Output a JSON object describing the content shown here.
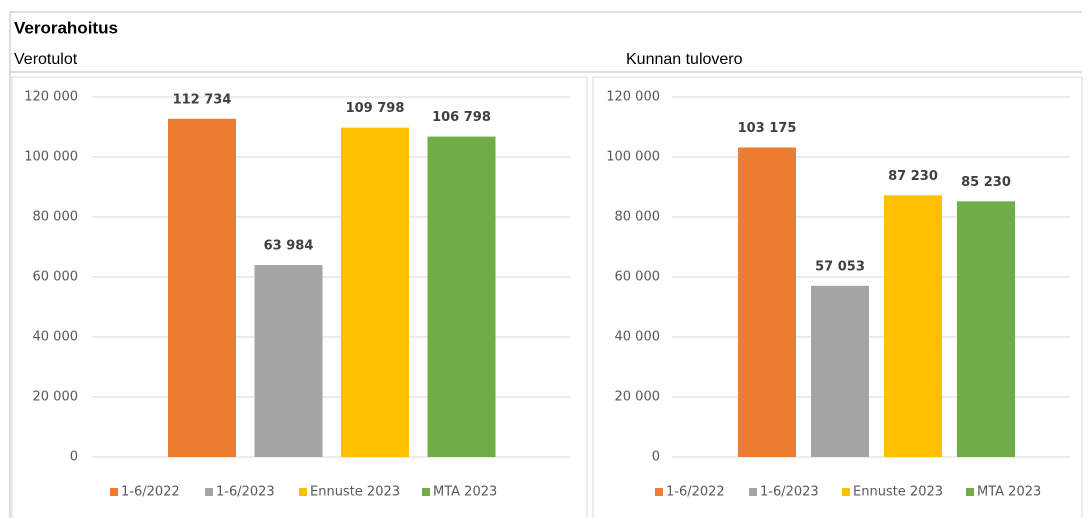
{
  "title": "Verorahoitus",
  "chart_data": [
    {
      "type": "bar",
      "title": "Verotulot",
      "categories": [
        null
      ],
      "series": [
        {
          "name": "1-6/2022",
          "color": "#ED7D31",
          "values": [
            112734
          ],
          "value_labels": [
            "112 734"
          ]
        },
        {
          "name": "1-6/2023",
          "color": "#A5A5A5",
          "values": [
            63984
          ],
          "value_labels": [
            "63 984"
          ]
        },
        {
          "name": "Ennuste 2023",
          "color": "#FFC000",
          "values": [
            109798
          ],
          "value_labels": [
            "109 798"
          ]
        },
        {
          "name": "MTA 2023",
          "color": "#70AD47",
          "values": [
            106798
          ],
          "value_labels": [
            "106 798"
          ]
        }
      ],
      "ylim": [
        0,
        120000
      ],
      "yticks": [
        0,
        {
          "value": 20000,
          "label": "20 000"
        },
        {
          "value": 40000,
          "label": "40 000"
        },
        {
          "value": 60000,
          "label": "60 000"
        },
        {
          "value": 80000,
          "label": "80 000"
        },
        {
          "value": 100000,
          "label": "100 000"
        },
        {
          "value": 120000,
          "label": "120 000"
        }
      ],
      "grid": true,
      "legend": "bottom"
    },
    {
      "type": "bar",
      "title": "Kunnan tulovero",
      "categories": [
        null
      ],
      "series": [
        {
          "name": "1-6/2022",
          "color": "#ED7D31",
          "values": [
            103175
          ],
          "value_labels": [
            "103 175"
          ]
        },
        {
          "name": "1-6/2023",
          "color": "#A5A5A5",
          "values": [
            57053
          ],
          "value_labels": [
            "57 053"
          ]
        },
        {
          "name": "Ennuste 2023",
          "color": "#FFC000",
          "values": [
            87230
          ],
          "value_labels": [
            "87 230"
          ]
        },
        {
          "name": "MTA 2023",
          "color": "#70AD47",
          "values": [
            85230
          ],
          "value_labels": [
            "85 230"
          ]
        }
      ],
      "ylim": [
        0,
        120000
      ],
      "yticks": [
        0,
        {
          "value": 20000,
          "label": "20 000"
        },
        {
          "value": 40000,
          "label": "40 000"
        },
        {
          "value": 60000,
          "label": "60 000"
        },
        {
          "value": 80000,
          "label": "80 000"
        },
        {
          "value": 100000,
          "label": "100 000"
        },
        {
          "value": 120000,
          "label": "120 000"
        }
      ],
      "grid": true,
      "legend": "bottom"
    }
  ]
}
